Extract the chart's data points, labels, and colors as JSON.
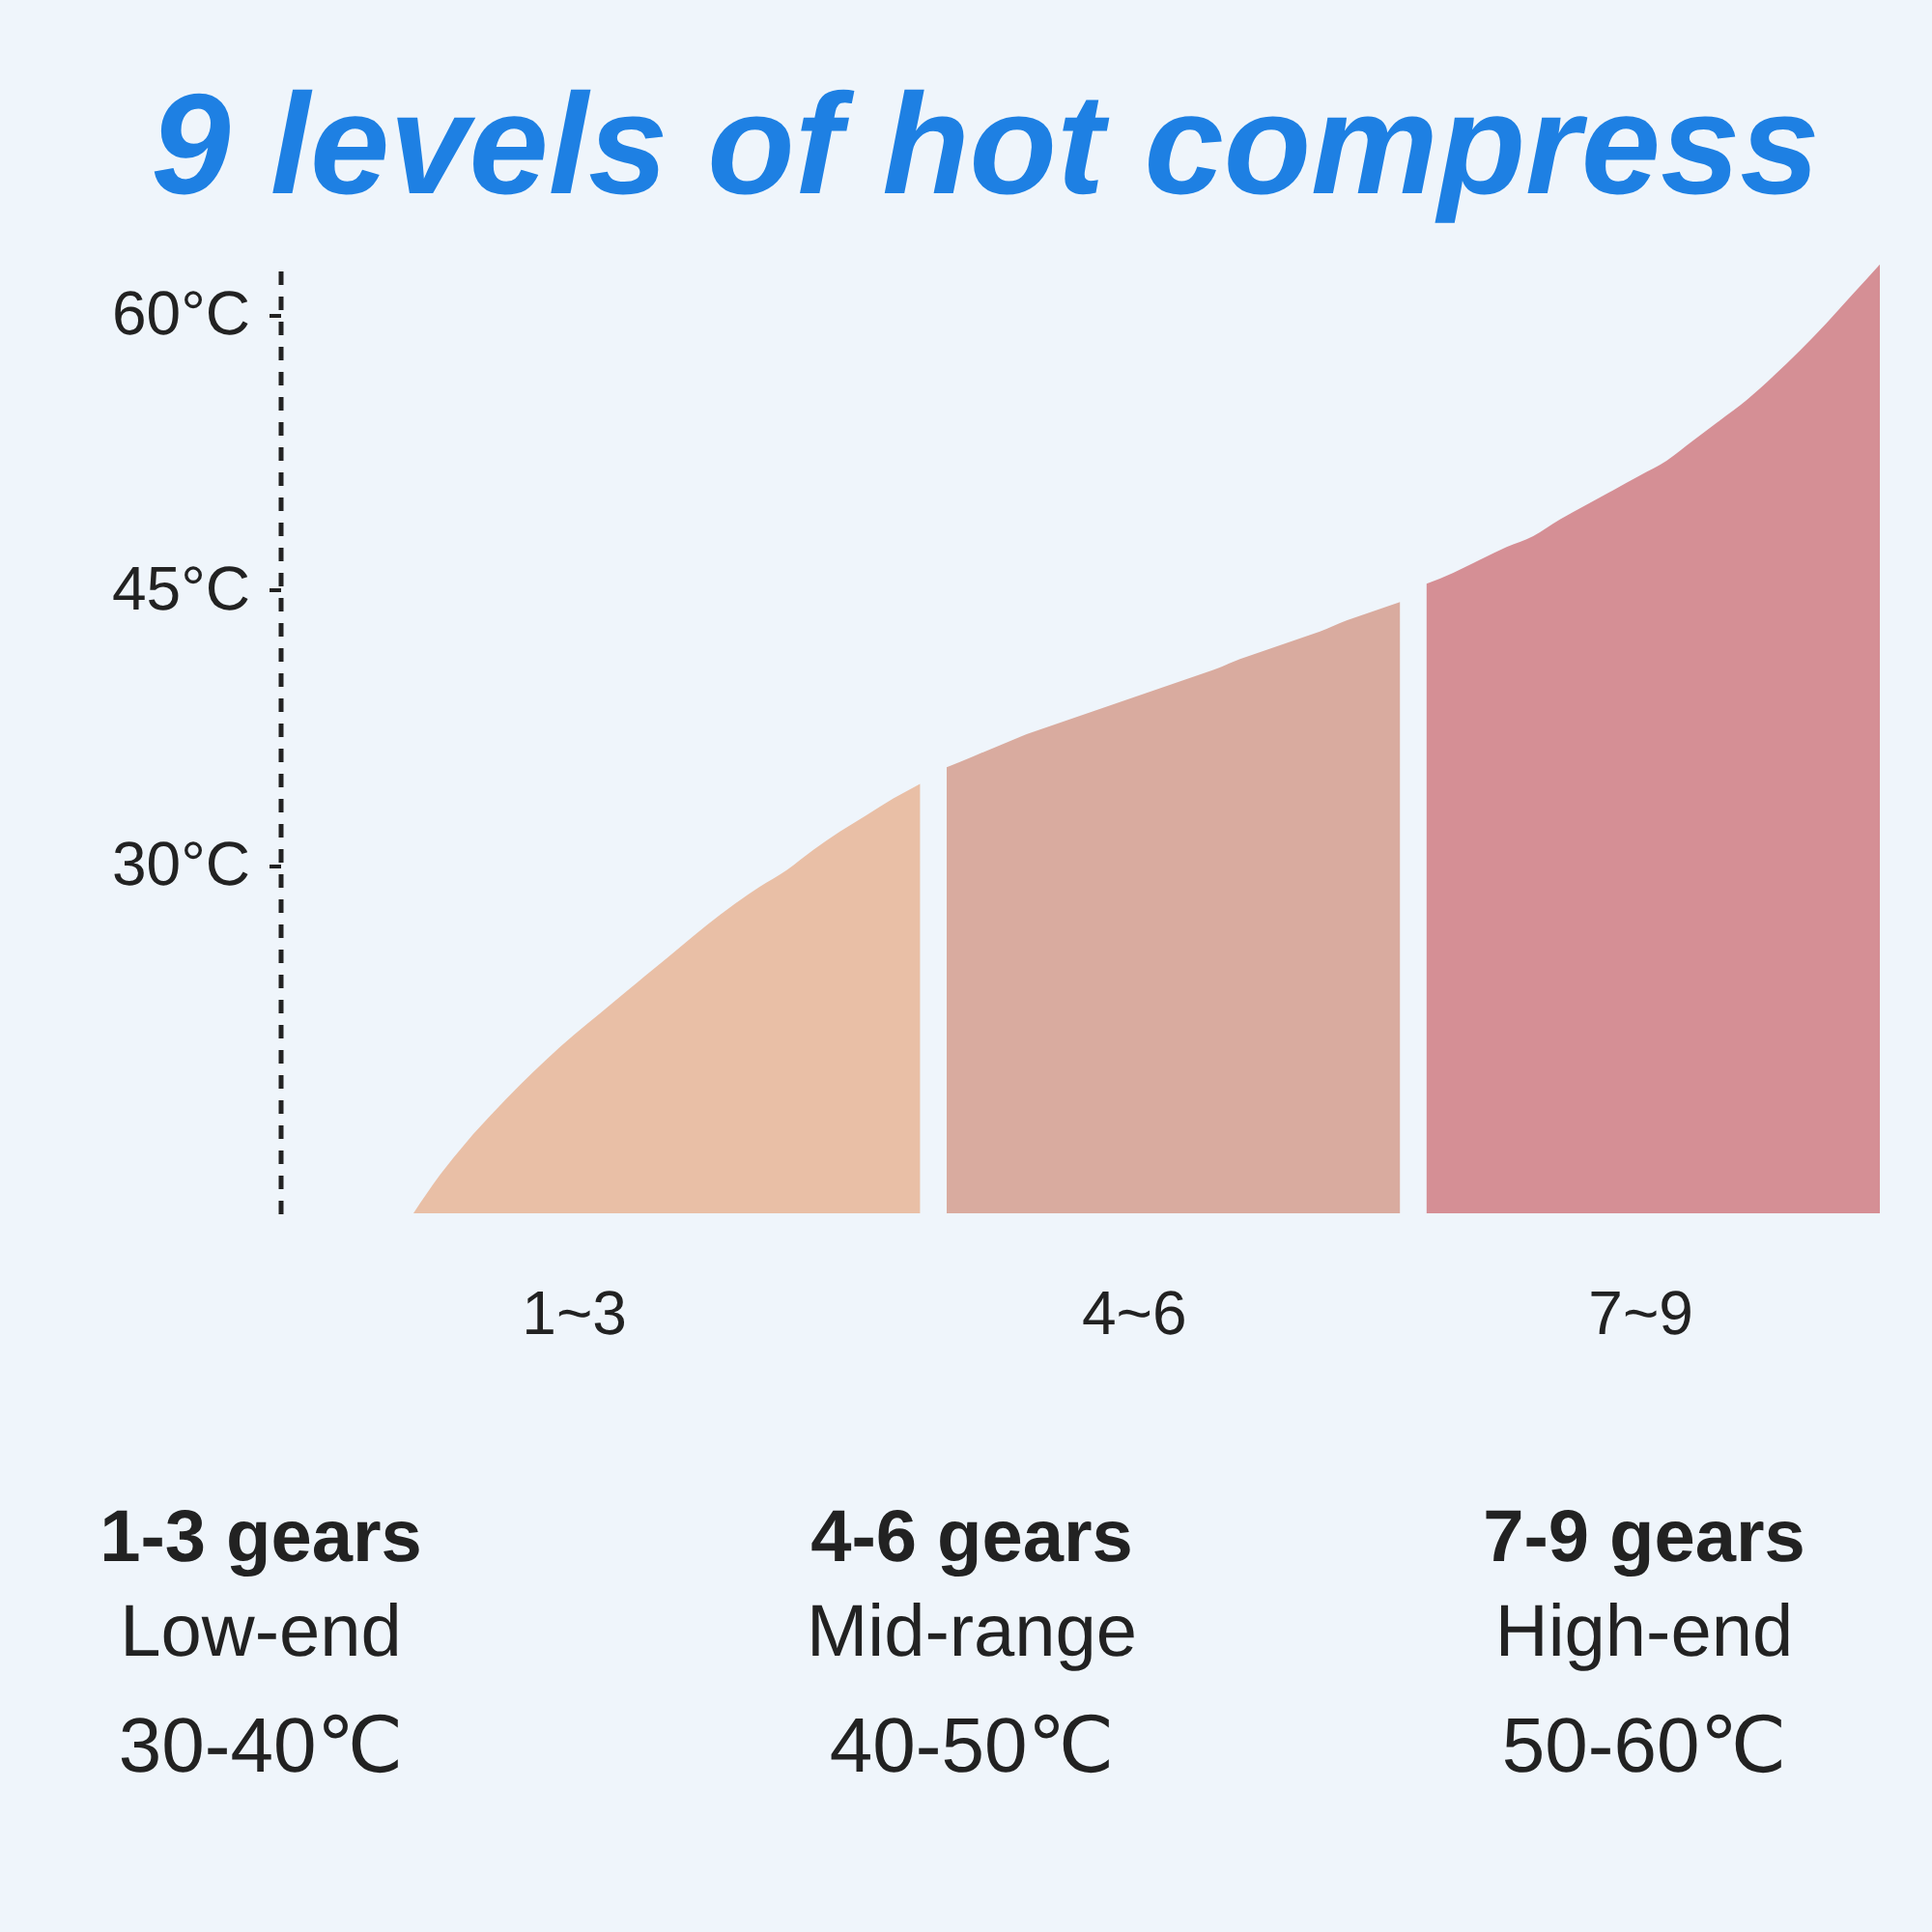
{
  "chart_data": {
    "type": "area",
    "title": "9 levels of hot compress",
    "categories": [
      null,
      null,
      null,
      null,
      null,
      null,
      null,
      null,
      null,
      null,
      null,
      "1~3",
      null,
      null,
      null,
      null,
      null,
      null,
      null,
      null,
      null,
      null,
      null,
      null,
      null,
      null,
      null,
      null,
      null,
      null,
      null,
      null,
      "4~6",
      null,
      null,
      null,
      null,
      null,
      null,
      null,
      null,
      null,
      null,
      null,
      null,
      null,
      null,
      null,
      null,
      null,
      null,
      "7~9",
      null,
      null,
      null,
      null,
      null,
      null,
      null,
      null,
      null
    ],
    "ylim": [
      11,
      63
    ],
    "yticks": [
      {
        "value": 30,
        "label": "30°C"
      },
      {
        "value": 45,
        "label": "45°C"
      },
      {
        "value": 60,
        "label": "60°C"
      }
    ],
    "series": [
      {
        "color": "#e9bfa6",
        "values": [
          null,
          null,
          null,
          null,
          null,
          11.0,
          13.1,
          14.9,
          16.5,
          18.0,
          19.4,
          20.7,
          21.9,
          23.1,
          24.3,
          25.5,
          26.7,
          27.8,
          28.8,
          29.7,
          30.8,
          31.8,
          32.7,
          33.6,
          34.4,
          null,
          null,
          null,
          null,
          null,
          null,
          null,
          null,
          null,
          null,
          null,
          null,
          null,
          null,
          null,
          null,
          null,
          null,
          null,
          null,
          null,
          null,
          null,
          null,
          null,
          null,
          null,
          null,
          null,
          null,
          null,
          null,
          null,
          null,
          null,
          null
        ]
      },
      {
        "color": "#d9ab9f",
        "values": [
          null,
          null,
          null,
          null,
          null,
          null,
          null,
          null,
          null,
          null,
          null,
          null,
          null,
          null,
          null,
          null,
          null,
          null,
          null,
          null,
          null,
          null,
          null,
          null,
          null,
          35.3,
          35.9,
          36.5,
          37.1,
          37.6,
          38.1,
          38.6,
          39.1,
          39.6,
          40.1,
          40.6,
          41.2,
          41.7,
          42.2,
          42.7,
          43.3,
          43.8,
          44.3,
          null,
          null,
          null,
          null,
          null,
          null,
          null,
          null,
          null,
          null,
          null,
          null,
          null,
          null,
          null,
          null,
          null,
          null
        ]
      },
      {
        "color": "#d58f95",
        "values": [
          null,
          null,
          null,
          null,
          null,
          null,
          null,
          null,
          null,
          null,
          null,
          null,
          null,
          null,
          null,
          null,
          null,
          null,
          null,
          null,
          null,
          null,
          null,
          null,
          null,
          null,
          null,
          null,
          null,
          null,
          null,
          null,
          null,
          null,
          null,
          null,
          null,
          null,
          null,
          null,
          null,
          null,
          null,
          45.3,
          45.9,
          46.6,
          47.3,
          47.9,
          48.8,
          49.6,
          50.4,
          51.2,
          52.0,
          53.1,
          54.2,
          55.3,
          56.6,
          58.0,
          59.5,
          61.1,
          62.7
        ]
      }
    ],
    "annotations": [
      "1-3 gears",
      "Low-end",
      "30-40℃",
      "4-6 gears",
      "Mid-range",
      "40-50℃",
      "7-9 gears",
      "High-end",
      "50-60℃"
    ]
  }
}
